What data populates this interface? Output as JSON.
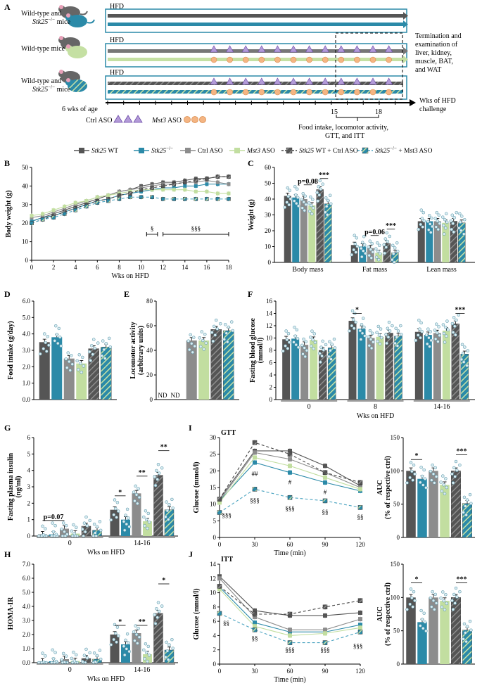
{
  "colors": {
    "wt": "#555555",
    "ko": "#2b8aa8",
    "ctrl": "#8c8c8c",
    "mst3": "#c2dea0",
    "wt_ctrl": "#444444",
    "ko_mst3": "#4aa3c0",
    "purple": "#b39bd8",
    "orange": "#f4b583",
    "mouse_gray": "#666666",
    "mouse_teal": "#2b8aa8",
    "mouse_green": "#c5e0a3"
  },
  "panel_labels": {
    "A": "A",
    "B": "B",
    "C": "C",
    "D": "D",
    "E": "E",
    "F": "F",
    "G": "G",
    "H": "H",
    "I": "I",
    "J": "J"
  },
  "schematic": {
    "row1_mice": "Wild-type and",
    "row1_mice_b": "Stk25",
    "row1_mice_c": "−/−",
    "row1_mice_d": " mice",
    "row2_mice": "Wild-type mice",
    "row3_mice": "Wild-type and",
    "row3_mice_b": "Stk25",
    "row3_mice_c": "−/−",
    "row3_mice_d": " mice",
    "hfd": "HFD",
    "termination": [
      "Termination and",
      "examination of",
      "liver, kidney,",
      "muscle, BAT,",
      "and WAT"
    ],
    "wks_hfd": [
      "Wks of HFD",
      "challenge"
    ],
    "age": "6 wks of age",
    "week15": "15",
    "week18": "18",
    "ctrl_aso": "Ctrl ASO",
    "mst3_aso_a": "Mst3",
    "mst3_aso_b": " ASO",
    "measurements": [
      "Food intake, locomotor activity,",
      "GTT, and ITT"
    ]
  },
  "legend": [
    {
      "italic": "Stk25",
      "text": " WT"
    },
    {
      "italic": "Stk25",
      "sup": "−/−",
      "text": ""
    },
    {
      "italic": "",
      "text": "Ctrl ASO"
    },
    {
      "italic": "Mst3",
      "text": " ASO"
    },
    {
      "italic": "Stk25",
      "text": " WT + Ctrl ASO"
    },
    {
      "italic": "Stk25",
      "sup": "−/−",
      "text": " + Mst3 ASO"
    }
  ],
  "chart_data": [
    {
      "id": "B",
      "type": "line",
      "ylabel": "Body weight (g)",
      "xlabel": "Wks on HFD",
      "xlim": [
        0,
        18
      ],
      "ylim": [
        0,
        50
      ],
      "x_ticks": [
        "0",
        "2",
        "4",
        "6",
        "8",
        "10",
        "12",
        "14",
        "16",
        "18"
      ],
      "y_ticks": [
        "0",
        "10",
        "20",
        "30",
        "40",
        "50"
      ],
      "x": [
        0,
        1,
        2,
        3,
        4,
        5,
        6,
        7,
        8,
        9,
        10,
        11,
        12,
        13,
        14,
        15,
        16,
        17,
        18
      ],
      "series": [
        {
          "name": "Stk25 WT",
          "values": [
            21,
            23,
            25,
            27,
            29,
            31,
            33,
            35,
            37,
            38,
            40,
            41,
            42,
            42,
            43,
            44,
            44,
            45,
            45
          ]
        },
        {
          "name": "Stk25-/-",
          "values": [
            21,
            23,
            24,
            26,
            28,
            30,
            32,
            33,
            35,
            36,
            37,
            38,
            39,
            39,
            40,
            40,
            41,
            41,
            41
          ]
        },
        {
          "name": "Ctrl ASO",
          "values": [
            23,
            24,
            26,
            28,
            30,
            32,
            34,
            35,
            37,
            38,
            39,
            40,
            41,
            41,
            42,
            42,
            43,
            42,
            41
          ]
        },
        {
          "name": "Mst3 ASO",
          "values": [
            24,
            25,
            27,
            29,
            31,
            32,
            34,
            35,
            36,
            37,
            38,
            38,
            38,
            38,
            38,
            37,
            37,
            36,
            36
          ]
        },
        {
          "name": "Stk25 WT + Ctrl ASO",
          "values": [
            20,
            22,
            24,
            26,
            28,
            30,
            32,
            33,
            35,
            36,
            38,
            39,
            40,
            41,
            42,
            43,
            44,
            45,
            45
          ]
        },
        {
          "name": "Stk25-/- + Mst3 ASO",
          "values": [
            20,
            22,
            23,
            25,
            27,
            29,
            31,
            32,
            33,
            34,
            34,
            34,
            33,
            33,
            33,
            33,
            33,
            33,
            33
          ]
        }
      ],
      "annotations": [
        "§",
        "§§§"
      ]
    },
    {
      "id": "C",
      "type": "bar",
      "ylabel": "Weight (g)",
      "ylim": [
        0,
        60
      ],
      "y_ticks": [
        "0",
        "10",
        "20",
        "30",
        "40",
        "50",
        "60"
      ],
      "categories": [
        "Body mass",
        "Fat mass",
        "Lean mass"
      ],
      "series": [
        {
          "name": "Stk25 WT",
          "values": [
            42,
            11,
            26
          ]
        },
        {
          "name": "Stk25-/-",
          "values": [
            41,
            10,
            26
          ]
        },
        {
          "name": "Ctrl ASO",
          "values": [
            40,
            9,
            26
          ]
        },
        {
          "name": "Mst3 ASO",
          "values": [
            36,
            6,
            25
          ]
        },
        {
          "name": "Stk25 WT + Ctrl ASO",
          "values": [
            46,
            12,
            26
          ]
        },
        {
          "name": "Stk25-/- + Mst3 ASO",
          "values": [
            37,
            6,
            25
          ]
        }
      ],
      "annotations": [
        "p=0.08",
        "***",
        "p=0.06",
        "***"
      ]
    },
    {
      "id": "D",
      "type": "bar",
      "ylabel": "Food intake (g/day)",
      "ylim": [
        0,
        6
      ],
      "y_ticks": [
        "0.0",
        "1.0",
        "2.0",
        "3.0",
        "4.0",
        "5.0",
        "6.0"
      ],
      "series": [
        {
          "name": "all groups",
          "values": [
            3.5,
            3.8,
            2.5,
            2.2,
            3.1,
            3.2
          ]
        }
      ]
    },
    {
      "id": "E",
      "type": "bar",
      "ylabel": "Locomotor activity",
      "ylabel2": "(arbitrary units)",
      "ylim": [
        0,
        80
      ],
      "y_ticks": [
        "0",
        "20",
        "40",
        "60",
        "80"
      ],
      "series": [
        {
          "name": "all groups",
          "values": [
            0,
            0,
            48,
            48,
            57,
            56
          ]
        }
      ],
      "nd_labels": [
        "ND",
        "ND"
      ]
    },
    {
      "id": "F",
      "type": "bar",
      "ylabel": "Fasting blood glucose",
      "ylabel2": "(mmol/l)",
      "xlabel": "Wks on HFD",
      "ylim": [
        0,
        16
      ],
      "y_ticks": [
        "0",
        "2",
        "4",
        "6",
        "8",
        "10",
        "12",
        "14",
        "16"
      ],
      "categories": [
        "0",
        "8",
        "14-16"
      ],
      "series": [
        {
          "name": "Stk25 WT",
          "values": [
            9.8,
            12.8,
            11.0
          ]
        },
        {
          "name": "Stk25-/-",
          "values": [
            9.9,
            11.5,
            10.5
          ]
        },
        {
          "name": "Ctrl ASO",
          "values": [
            8.9,
            10.0,
            10.8
          ]
        },
        {
          "name": "Mst3 ASO",
          "values": [
            9.7,
            10.2,
            11.2
          ]
        },
        {
          "name": "Stk25 WT + Ctrl ASO",
          "values": [
            8.0,
            10.8,
            12.3
          ]
        },
        {
          "name": "Stk25-/- + Mst3 ASO",
          "values": [
            8.4,
            10.3,
            7.4
          ]
        }
      ],
      "annotations": [
        "*",
        "***"
      ]
    },
    {
      "id": "G",
      "type": "bar",
      "ylabel": "Fasting plasma insulin",
      "ylabel2": "(ng/ml)",
      "xlabel": "Wks on HFD",
      "ylim": [
        0,
        6
      ],
      "y_ticks": [
        "0",
        "1",
        "2",
        "3",
        "4",
        "5",
        "6"
      ],
      "categories": [
        "0",
        "14-16"
      ],
      "series": [
        {
          "name": "Stk25 WT",
          "values": [
            0.1,
            1.6
          ]
        },
        {
          "name": "Stk25-/-",
          "values": [
            0.1,
            1.0
          ]
        },
        {
          "name": "Ctrl ASO",
          "values": [
            0.45,
            2.6
          ]
        },
        {
          "name": "Mst3 ASO",
          "values": [
            0.15,
            0.9
          ]
        },
        {
          "name": "Stk25 WT + Ctrl ASO",
          "values": [
            0.6,
            3.7
          ]
        },
        {
          "name": "Stk25-/- + Mst3 ASO",
          "values": [
            0.35,
            1.6
          ]
        }
      ],
      "annotations": [
        "p=0.07",
        "*",
        "**",
        "**"
      ]
    },
    {
      "id": "H",
      "type": "bar",
      "ylabel": "HOMA-IR",
      "xlabel": "Wks on HFD",
      "ylim": [
        0,
        7
      ],
      "y_ticks": [
        "0.0",
        "1.0",
        "2.0",
        "3.0",
        "4.0",
        "5.0",
        "6.0",
        "7.0"
      ],
      "categories": [
        "0",
        "14-16"
      ],
      "series": [
        {
          "name": "Stk25 WT",
          "values": [
            0.08,
            2.0
          ]
        },
        {
          "name": "Stk25-/-",
          "values": [
            0.1,
            1.3
          ]
        },
        {
          "name": "Ctrl ASO",
          "values": [
            0.25,
            2.1
          ]
        },
        {
          "name": "Mst3 ASO",
          "values": [
            0.12,
            0.6
          ]
        },
        {
          "name": "Stk25 WT + Ctrl ASO",
          "values": [
            0.3,
            3.5
          ]
        },
        {
          "name": "Stk25-/- + Mst3 ASO",
          "values": [
            0.25,
            0.9
          ]
        }
      ],
      "annotations": [
        "*",
        "**",
        "*"
      ]
    },
    {
      "id": "I",
      "type": "line",
      "title": "GTT",
      "ylabel": "Glucose (mmol/l)",
      "xlabel": "Time (min)",
      "xlim": [
        0,
        120
      ],
      "ylim": [
        0,
        30
      ],
      "x_ticks": [
        "0",
        "30",
        "60",
        "90",
        "120"
      ],
      "y_ticks": [
        "0",
        "5",
        "10",
        "15",
        "20",
        "25",
        "30"
      ],
      "x": [
        0,
        30,
        60,
        90,
        120
      ],
      "series": [
        {
          "name": "Stk25 WT",
          "values": [
            11.5,
            26,
            26,
            21.5,
            15.5
          ]
        },
        {
          "name": "Stk25-/-",
          "values": [
            11,
            22.5,
            19.5,
            16.5,
            14
          ]
        },
        {
          "name": "Ctrl ASO",
          "values": [
            11,
            25.5,
            23.5,
            19.5,
            15
          ]
        },
        {
          "name": "Mst3 ASO",
          "values": [
            10.5,
            24,
            21.5,
            18,
            14.5
          ]
        },
        {
          "name": "Stk25 WT + Ctrl ASO",
          "values": [
            11.5,
            28.5,
            25,
            19.5,
            16.5
          ]
        },
        {
          "name": "Stk25-/- + Mst3 ASO",
          "values": [
            7.5,
            14.5,
            12,
            11,
            9
          ]
        }
      ],
      "annotations": [
        "§§§",
        "##",
        "§§§",
        "#",
        "§§§",
        "#",
        "§§",
        "§§"
      ]
    },
    {
      "id": "I_AUC",
      "type": "bar",
      "ylabel": "AUC",
      "ylabel2": "(% of respective ctrl)",
      "ylim": [
        0,
        150
      ],
      "y_ticks": [
        "0",
        "50",
        "100",
        "150"
      ],
      "series": [
        {
          "name": "all groups",
          "values": [
            100,
            88,
            100,
            79,
            100,
            51
          ]
        }
      ],
      "annotations": [
        "*",
        "***"
      ]
    },
    {
      "id": "J",
      "type": "line",
      "title": "ITT",
      "ylabel": "Glucose (mmol/l)",
      "xlabel": "Time (min)",
      "xlim": [
        0,
        120
      ],
      "ylim": [
        0,
        14
      ],
      "x_ticks": [
        "0",
        "30",
        "60",
        "90",
        "120"
      ],
      "y_ticks": [
        "0",
        "2",
        "4",
        "6",
        "8",
        "10",
        "12",
        "14"
      ],
      "x": [
        0,
        30,
        60,
        90,
        120
      ],
      "series": [
        {
          "name": "Stk25 WT",
          "values": [
            12.3,
            7.5,
            6.8,
            6.8,
            7.2
          ]
        },
        {
          "name": "Stk25-/-",
          "values": [
            10.8,
            5.8,
            4.5,
            4.5,
            5.5
          ]
        },
        {
          "name": "Ctrl ASO",
          "values": [
            12.0,
            6.6,
            4.8,
            4.8,
            6.3
          ]
        },
        {
          "name": "Mst3 ASO",
          "values": [
            10.5,
            5.3,
            4.0,
            4.3,
            5.1
          ]
        },
        {
          "name": "Stk25 WT + Ctrl ASO",
          "values": [
            10.9,
            7.0,
            7.0,
            8.0,
            8.9
          ]
        },
        {
          "name": "Stk25-/- + Mst3 ASO",
          "values": [
            7.1,
            4.8,
            3.0,
            3.0,
            4.5
          ]
        }
      ],
      "annotations": [
        "§§",
        "§§",
        "§§§",
        "§§§",
        "§§§"
      ]
    },
    {
      "id": "J_AUC",
      "type": "bar",
      "ylabel": "AUC",
      "ylabel2": "(% of respective ctrl)",
      "ylim": [
        0,
        150
      ],
      "y_ticks": [
        "0",
        "50",
        "100",
        "150"
      ],
      "series": [
        {
          "name": "all groups",
          "values": [
            100,
            63,
            100,
            95,
            100,
            51
          ]
        }
      ],
      "annotations": [
        "*",
        "***"
      ]
    }
  ]
}
